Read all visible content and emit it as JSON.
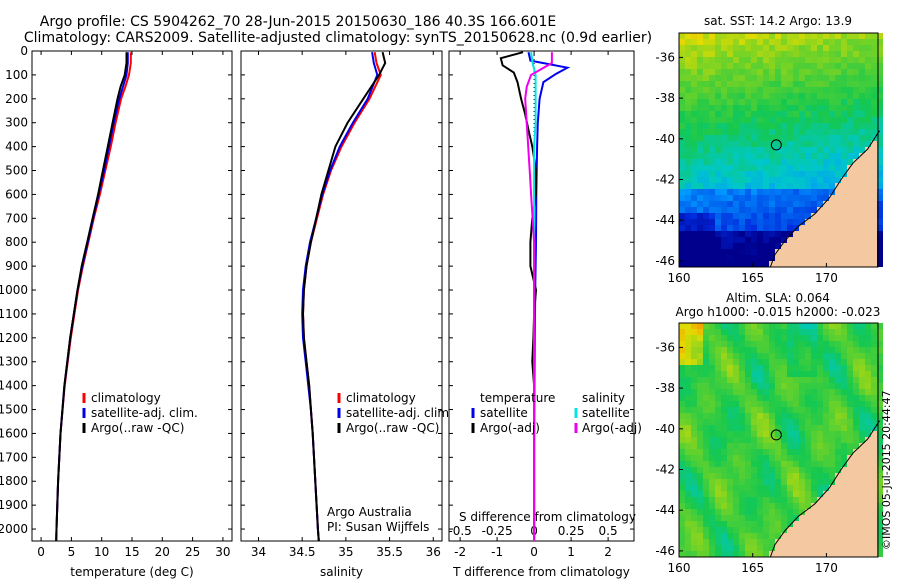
{
  "header": {
    "line1": "Argo profile: CS 5904262_70 28-Jun-2015 20150630_186 40.3S 166.601E",
    "line2": "Climatology: CARS2009. Satellite-adjusted climatology: synTS_20150628.nc (0.9d earlier)"
  },
  "credit": "©IMOS 05-Jul-2015 20:44:47",
  "depth_ticks": [
    "0",
    "100",
    "200",
    "300",
    "400",
    "500",
    "600",
    "700",
    "800",
    "900",
    "1000",
    "1100",
    "1200",
    "1300",
    "1400",
    "1500",
    "1600",
    "1700",
    "1800",
    "1900",
    "2000"
  ],
  "colors": {
    "climatology": "#ff0000",
    "satellite": "#0000ee",
    "argo": "#000000",
    "salinity_satellite": "#00e5e5",
    "salinity_argo": "#ee00ee"
  },
  "chart_data": [
    {
      "type": "line",
      "panel": "temperature",
      "xlabel": "temperature (deg C)",
      "xticks": [
        "0",
        "5",
        "10",
        "15",
        "20",
        "25",
        "30"
      ],
      "xlim": [
        -1.5,
        31.5
      ],
      "ylim": [
        2050,
        0
      ],
      "y_reversed": true,
      "legend": [
        "climatology",
        "satellite-adj. clim.",
        "Argo(..raw -QC)"
      ],
      "legend_position": "lower-right",
      "series": [
        {
          "name": "climatology",
          "color_key": "climatology",
          "depth": [
            5,
            50,
            100,
            150,
            200,
            300,
            400,
            500,
            600,
            700,
            800,
            900,
            1000,
            1200,
            1400,
            1600,
            1800,
            2000,
            2050
          ],
          "values": [
            14.8,
            14.8,
            14.5,
            13.9,
            13.2,
            12.3,
            11.5,
            10.6,
            9.7,
            8.7,
            7.8,
            6.9,
            6.1,
            4.9,
            3.9,
            3.2,
            2.8,
            2.55,
            2.5
          ]
        },
        {
          "name": "satellite-adj. clim.",
          "color_key": "satellite",
          "depth": [
            5,
            50,
            100,
            150,
            200,
            300,
            400,
            500,
            600,
            700,
            800,
            900,
            1000,
            1200,
            1400,
            1600,
            1800,
            2000,
            2050
          ],
          "values": [
            14.3,
            14.3,
            14.1,
            13.5,
            12.9,
            12.0,
            11.2,
            10.4,
            9.5,
            8.6,
            7.7,
            6.8,
            6.0,
            4.8,
            3.85,
            3.2,
            2.8,
            2.55,
            2.5
          ]
        },
        {
          "name": "Argo(..raw -QC)",
          "color_key": "argo",
          "depth": [
            5,
            50,
            100,
            150,
            200,
            300,
            400,
            500,
            600,
            700,
            800,
            900,
            1000,
            1200,
            1400,
            1600,
            1800,
            2000,
            2050
          ],
          "values": [
            14.1,
            14.1,
            13.8,
            13.1,
            12.6,
            11.8,
            11.0,
            10.2,
            9.4,
            8.5,
            7.6,
            6.7,
            6.0,
            4.8,
            3.85,
            3.2,
            2.8,
            2.55,
            2.5
          ]
        }
      ]
    },
    {
      "type": "line",
      "panel": "salinity",
      "xlabel": "salinity",
      "xticks": [
        "34",
        "34.5",
        "35",
        "35.5",
        "36"
      ],
      "xlim": [
        33.8,
        36.1
      ],
      "ylim": [
        2050,
        0
      ],
      "y_reversed": true,
      "legend": [
        "climatology",
        "satellite-adj. clim.",
        "Argo(..raw -QC)"
      ],
      "legend_position": "lower-right",
      "annotations": [
        "Argo Australia",
        "PI: Susan Wijffels"
      ],
      "series": [
        {
          "name": "climatology",
          "color_key": "climatology",
          "depth": [
            5,
            50,
            100,
            200,
            300,
            400,
            500,
            600,
            700,
            800,
            900,
            1000,
            1100,
            1200,
            1300,
            1400,
            1500,
            1600,
            1800,
            2000,
            2050
          ],
          "values": [
            35.33,
            35.35,
            35.4,
            35.27,
            35.1,
            34.95,
            34.83,
            34.74,
            34.67,
            34.6,
            34.55,
            34.52,
            34.51,
            34.52,
            34.55,
            34.58,
            34.6,
            34.62,
            34.65,
            34.68,
            34.69
          ]
        },
        {
          "name": "satellite-adj. clim.",
          "color_key": "satellite",
          "depth": [
            5,
            50,
            100,
            200,
            300,
            400,
            500,
            600,
            700,
            800,
            900,
            1000,
            1100,
            1200,
            1300,
            1400,
            1500,
            1600,
            1800,
            2000,
            2050
          ],
          "values": [
            35.3,
            35.32,
            35.36,
            35.25,
            35.08,
            34.93,
            34.82,
            34.73,
            34.66,
            34.59,
            34.54,
            34.51,
            34.5,
            34.51,
            34.54,
            34.57,
            34.6,
            34.62,
            34.65,
            34.68,
            34.69
          ]
        },
        {
          "name": "Argo(..raw -QC)",
          "color_key": "argo",
          "depth": [
            5,
            50,
            100,
            200,
            300,
            400,
            500,
            600,
            700,
            800,
            900,
            1000,
            1100,
            1200,
            1300,
            1400,
            1500,
            1600,
            1800,
            2000,
            2050
          ],
          "values": [
            35.42,
            35.45,
            35.38,
            35.2,
            35.02,
            34.88,
            34.8,
            34.72,
            34.66,
            34.6,
            34.55,
            34.52,
            34.51,
            34.52,
            34.55,
            34.58,
            34.6,
            34.62,
            34.65,
            34.68,
            34.69
          ]
        }
      ]
    },
    {
      "type": "line",
      "panel": "difference",
      "xlabel": "T difference from climatology",
      "xticks": [
        "-2",
        "-1",
        "0",
        "1",
        "2"
      ],
      "xlim": [
        -2.3,
        2.7
      ],
      "top_axis_label": "S difference from climatology",
      "top_xticks": [
        "-0.5",
        "-0.25",
        "0",
        "0.25",
        "0.5"
      ],
      "ylim": [
        2050,
        0
      ],
      "y_reversed": true,
      "legend": [
        "temperature",
        "satellite",
        "Argo(-adj)",
        "salinity",
        "satellite",
        "Argo(-adj)"
      ],
      "legend_position": "lower",
      "series": [
        {
          "name": "satellite",
          "group": "temperature",
          "color_key": "satellite",
          "depth": [
            5,
            40,
            70,
            95,
            130,
            200,
            300,
            400,
            600,
            800,
            1000,
            1200,
            1400,
            1600,
            2000,
            2050
          ],
          "values": [
            -0.15,
            -0.1,
            0.9,
            0.6,
            0.25,
            0.15,
            0.1,
            0.08,
            0.06,
            0.05,
            0.03,
            0.02,
            0.01,
            0.0,
            0.0,
            0.0
          ]
        },
        {
          "name": "Argo(-adj)",
          "group": "temperature",
          "color_key": "argo",
          "depth": [
            5,
            30,
            60,
            90,
            130,
            200,
            260,
            330,
            400,
            500,
            600,
            700,
            800,
            900,
            1000,
            1100,
            1200,
            1300,
            1400,
            1600,
            2000,
            2050
          ],
          "values": [
            -0.3,
            -0.9,
            -0.85,
            -0.55,
            -0.45,
            -0.35,
            -0.25,
            -0.15,
            -0.05,
            0.05,
            0.05,
            -0.05,
            -0.1,
            -0.1,
            0.05,
            0.0,
            -0.02,
            -0.05,
            0.0,
            0.0,
            0.0,
            0.0
          ]
        },
        {
          "name": "satellite",
          "group": "salinity",
          "color_key": "salinity_satellite",
          "depth": [
            5,
            50,
            100,
            200,
            300,
            400,
            600,
            800,
            1000,
            1200,
            1400,
            1600,
            1800,
            2000,
            2050
          ],
          "values": [
            -0.02,
            -0.01,
            0.01,
            0.01,
            0.01,
            0.0,
            0.0,
            0.0,
            0.0,
            0.0,
            0.0,
            0.0,
            0.0,
            0.0,
            0.0
          ]
        },
        {
          "name": "Argo(-adj)",
          "group": "salinity",
          "color_key": "salinity_argo",
          "depth": [
            5,
            50,
            100,
            150,
            200,
            300,
            400,
            500,
            600,
            700,
            800,
            1000,
            1200,
            1400,
            1600,
            1800,
            2000,
            2050
          ],
          "values": [
            0.12,
            0.12,
            -0.02,
            -0.05,
            -0.06,
            -0.05,
            -0.04,
            -0.03,
            -0.02,
            -0.01,
            0.0,
            0.0,
            0.0,
            0.0,
            0.0,
            0.0,
            0.0,
            0.0
          ]
        }
      ]
    },
    {
      "type": "heatmap",
      "panel": "sst_map",
      "title": "sat. SST: 14.2 Argo: 13.9",
      "xticks": [
        "160",
        "165",
        "170"
      ],
      "yticks": [
        "-36",
        "-38",
        "-40",
        "-42",
        "-44",
        "-46"
      ],
      "xlim": [
        160,
        173.5
      ],
      "ylim": [
        -46.3,
        -34.8
      ],
      "float_position": {
        "lon": 166.601,
        "lat": -40.3
      }
    },
    {
      "type": "heatmap",
      "panel": "sla_map",
      "title": "Altim. SLA: 0.064",
      "subtitle": "Argo h1000: -0.015 h2000: -0.023",
      "xticks": [
        "160",
        "165",
        "170"
      ],
      "yticks": [
        "-36",
        "-38",
        "-40",
        "-42",
        "-44",
        "-46"
      ],
      "xlim": [
        160,
        173.5
      ],
      "ylim": [
        -46.3,
        -34.8
      ],
      "float_position": {
        "lon": 166.601,
        "lat": -40.3
      }
    }
  ]
}
